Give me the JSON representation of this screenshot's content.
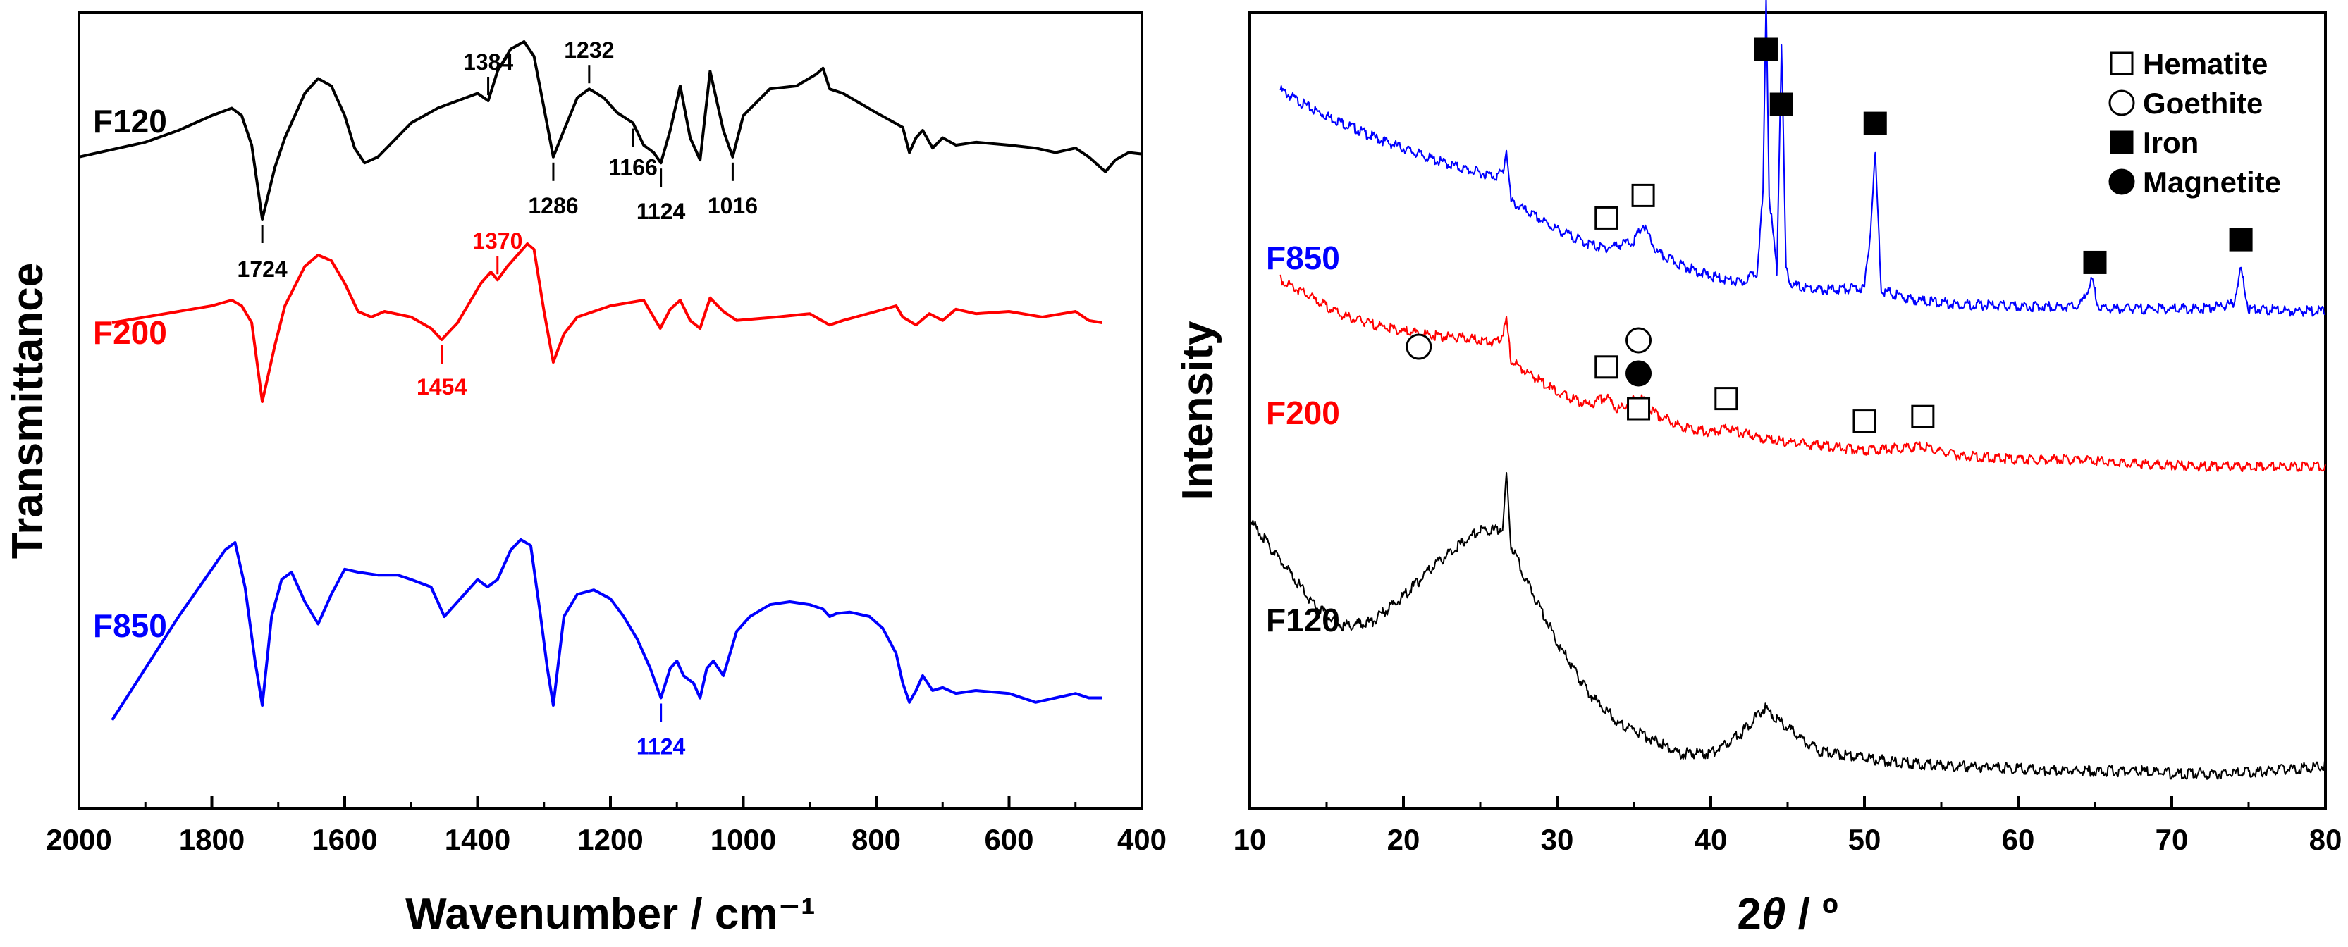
{
  "chart_data": [
    {
      "type": "line",
      "xlabel": "Wavenumber / cm⁻¹",
      "ylabel": "Transmittance",
      "xlim": [
        2000,
        400
      ],
      "x_reversed": true,
      "x_ticks": [
        2000,
        1800,
        1600,
        1400,
        1200,
        1000,
        800,
        600,
        400
      ],
      "y_ticks": false,
      "grid": false,
      "series": [
        {
          "name": "F120",
          "color": "#000000",
          "x": [
            2000,
            1900,
            1850,
            1800,
            1770,
            1755,
            1740,
            1724,
            1705,
            1690,
            1660,
            1640,
            1620,
            1600,
            1585,
            1570,
            1550,
            1500,
            1460,
            1430,
            1400,
            1384,
            1370,
            1350,
            1330,
            1315,
            1300,
            1286,
            1270,
            1250,
            1232,
            1210,
            1190,
            1166,
            1150,
            1135,
            1124,
            1110,
            1095,
            1080,
            1065,
            1050,
            1030,
            1016,
            1000,
            960,
            920,
            890,
            880,
            870,
            850,
            800,
            760,
            750,
            740,
            730,
            715,
            700,
            680,
            650,
            600,
            560,
            530,
            500,
            480,
            455,
            440,
            420,
            400
          ],
          "y": [
            0.12,
            0.22,
            0.3,
            0.4,
            0.45,
            0.4,
            0.2,
            -0.3,
            0.05,
            0.25,
            0.55,
            0.65,
            0.6,
            0.4,
            0.18,
            0.08,
            0.12,
            0.35,
            0.45,
            0.5,
            0.55,
            0.5,
            0.7,
            0.85,
            0.9,
            0.8,
            0.45,
            0.12,
            0.3,
            0.52,
            0.58,
            0.52,
            0.42,
            0.35,
            0.2,
            0.15,
            0.08,
            0.3,
            0.6,
            0.25,
            0.1,
            0.7,
            0.3,
            0.12,
            0.4,
            0.58,
            0.6,
            0.68,
            0.72,
            0.58,
            0.55,
            0.42,
            0.32,
            0.15,
            0.25,
            0.3,
            0.18,
            0.25,
            0.2,
            0.22,
            0.2,
            0.18,
            0.15,
            0.18,
            0.12,
            0.02,
            0.1,
            0.15,
            0.14
          ]
        },
        {
          "name": "F200",
          "color": "#ff0000",
          "x": [
            1950,
            1850,
            1800,
            1770,
            1755,
            1740,
            1724,
            1705,
            1690,
            1660,
            1640,
            1620,
            1600,
            1580,
            1560,
            1540,
            1500,
            1470,
            1454,
            1430,
            1410,
            1395,
            1380,
            1370,
            1355,
            1340,
            1325,
            1315,
            1300,
            1286,
            1270,
            1250,
            1200,
            1150,
            1140,
            1125,
            1110,
            1095,
            1080,
            1065,
            1050,
            1030,
            1010,
            950,
            900,
            870,
            850,
            800,
            770,
            760,
            740,
            720,
            700,
            680,
            650,
            600,
            550,
            500,
            480,
            460
          ],
          "y": [
            0.4,
            0.5,
            0.55,
            0.6,
            0.55,
            0.4,
            -0.3,
            0.2,
            0.55,
            0.9,
            1.0,
            0.95,
            0.75,
            0.5,
            0.45,
            0.5,
            0.45,
            0.35,
            0.25,
            0.4,
            0.6,
            0.75,
            0.85,
            0.78,
            0.9,
            1.0,
            1.1,
            1.05,
            0.5,
            0.05,
            0.3,
            0.45,
            0.55,
            0.6,
            0.5,
            0.35,
            0.52,
            0.6,
            0.42,
            0.35,
            0.62,
            0.5,
            0.42,
            0.45,
            0.48,
            0.38,
            0.42,
            0.5,
            0.55,
            0.45,
            0.38,
            0.48,
            0.42,
            0.52,
            0.48,
            0.5,
            0.45,
            0.5,
            0.42,
            0.4
          ]
        },
        {
          "name": "F850",
          "color": "#0000ff",
          "x": [
            1950,
            1900,
            1850,
            1800,
            1780,
            1765,
            1750,
            1735,
            1724,
            1710,
            1695,
            1680,
            1660,
            1640,
            1620,
            1600,
            1580,
            1550,
            1520,
            1500,
            1470,
            1450,
            1430,
            1410,
            1400,
            1385,
            1370,
            1350,
            1335,
            1320,
            1305,
            1295,
            1286,
            1270,
            1250,
            1225,
            1200,
            1180,
            1160,
            1140,
            1124,
            1110,
            1100,
            1090,
            1075,
            1065,
            1055,
            1045,
            1030,
            1010,
            990,
            960,
            930,
            900,
            880,
            870,
            860,
            840,
            810,
            790,
            770,
            760,
            750,
            740,
            730,
            715,
            700,
            680,
            650,
            600,
            560,
            530,
            500,
            480,
            460
          ],
          "y": [
            -0.4,
            -0.05,
            0.3,
            0.62,
            0.75,
            0.8,
            0.5,
            0.0,
            -0.3,
            0.3,
            0.55,
            0.6,
            0.4,
            0.25,
            0.45,
            0.62,
            0.6,
            0.58,
            0.58,
            0.55,
            0.5,
            0.3,
            0.4,
            0.5,
            0.55,
            0.5,
            0.55,
            0.75,
            0.82,
            0.78,
            0.3,
            -0.05,
            -0.3,
            0.3,
            0.45,
            0.48,
            0.42,
            0.3,
            0.15,
            -0.05,
            -0.25,
            -0.05,
            0.0,
            -0.1,
            -0.15,
            -0.25,
            -0.05,
            0.0,
            -0.1,
            0.2,
            0.3,
            0.38,
            0.4,
            0.38,
            0.35,
            0.3,
            0.32,
            0.33,
            0.3,
            0.22,
            0.05,
            -0.15,
            -0.28,
            -0.2,
            -0.1,
            -0.2,
            -0.18,
            -0.22,
            -0.2,
            -0.22,
            -0.28,
            -0.25,
            -0.22,
            -0.25,
            -0.25
          ]
        }
      ],
      "annotations": [
        {
          "text": "1724",
          "series": "F120",
          "x": 1724
        },
        {
          "text": "1384",
          "series": "F120",
          "x": 1384
        },
        {
          "text": "1232",
          "series": "F120",
          "x": 1232
        },
        {
          "text": "1286",
          "series": "F120",
          "x": 1286
        },
        {
          "text": "1166",
          "series": "F120",
          "x": 1166
        },
        {
          "text": "1124",
          "series": "F120",
          "x": 1124
        },
        {
          "text": "1016",
          "series": "F120",
          "x": 1016
        },
        {
          "text": "1454",
          "series": "F200",
          "x": 1454
        },
        {
          "text": "1370",
          "series": "F200",
          "x": 1370
        },
        {
          "text": "1124",
          "series": "F850",
          "x": 1124
        }
      ]
    },
    {
      "type": "line",
      "xlabel": "2θ / º",
      "xlabel_parts": {
        "pre": "2",
        "theta": "θ",
        "post": " / º"
      },
      "ylabel": "Intensity",
      "xlim": [
        10,
        80
      ],
      "x_ticks": [
        10,
        20,
        30,
        40,
        50,
        60,
        70,
        80
      ],
      "y_ticks": false,
      "grid": false,
      "legend_position": "top-right",
      "legend": [
        {
          "label": "Hematite",
          "marker": "open-square"
        },
        {
          "label": "Goethite",
          "marker": "open-circle"
        },
        {
          "label": "Iron",
          "marker": "filled-square"
        },
        {
          "label": "Magnetite",
          "marker": "filled-circle"
        }
      ],
      "series": [
        {
          "name": "F850",
          "color": "#0000ff",
          "x": [
            12,
            14,
            16,
            18,
            20,
            22,
            24,
            26,
            26.5,
            26.7,
            27,
            28,
            30,
            32,
            33,
            35,
            35.6,
            36.5,
            38,
            40,
            42,
            43,
            43.4,
            43.6,
            43.8,
            44.3,
            44.6,
            44.9,
            45.3,
            47,
            50,
            50.4,
            50.7,
            51.1,
            53,
            56,
            60,
            64,
            64.8,
            65.3,
            68,
            72,
            74,
            74.5,
            75,
            78,
            80
          ],
          "y": [
            100,
            92,
            86,
            80,
            75,
            70,
            66,
            63,
            65,
            75,
            52,
            48,
            40,
            34,
            32,
            35,
            42,
            30,
            25,
            20,
            17,
            22,
            55,
            140,
            55,
            22,
            120,
            22,
            16,
            14,
            15,
            40,
            73,
            14,
            10,
            8,
            7,
            7,
            18,
            6,
            6,
            6,
            8,
            23,
            6,
            5,
            5
          ]
        },
        {
          "name": "F200",
          "color": "#ff0000",
          "x": [
            12,
            14,
            16,
            18,
            20,
            22,
            24,
            26,
            26.5,
            26.7,
            27,
            28,
            30,
            32,
            33.2,
            34,
            35.3,
            36.5,
            38,
            40,
            41,
            43,
            46,
            50,
            53.8,
            56,
            60,
            64,
            68,
            72,
            76,
            80
          ],
          "y": [
            88,
            80,
            72,
            68,
            65,
            63,
            62,
            60,
            64,
            70,
            52,
            47,
            38,
            32,
            36,
            30,
            36,
            28,
            23,
            20,
            22,
            18,
            15,
            12,
            14,
            10,
            8,
            8,
            6,
            5,
            5,
            5
          ]
        },
        {
          "name": "F120",
          "color": "#000000",
          "x": [
            10,
            12,
            14,
            16,
            18,
            20,
            22,
            24,
            25,
            26,
            26.5,
            26.7,
            27,
            28,
            30,
            32,
            34,
            36,
            38,
            40,
            42,
            43.5,
            45,
            47,
            50,
            53,
            56,
            60,
            62,
            65,
            68,
            70,
            72,
            74,
            76,
            78,
            80
          ],
          "y": [
            100,
            84,
            68,
            58,
            60,
            70,
            82,
            92,
            96,
            96,
            98,
            118,
            90,
            76,
            52,
            32,
            20,
            14,
            8,
            8,
            16,
            26,
            18,
            9,
            6,
            4,
            3,
            2,
            1,
            1,
            1,
            0,
            0,
            0,
            1,
            2,
            3
          ]
        }
      ],
      "annotations": [
        {
          "marker": "filled-square",
          "series": "F850",
          "x": 43.6
        },
        {
          "marker": "filled-square",
          "series": "F850",
          "x": 44.6
        },
        {
          "marker": "filled-square",
          "series": "F850",
          "x": 50.7
        },
        {
          "marker": "filled-square",
          "series": "F850",
          "x": 65.0
        },
        {
          "marker": "filled-square",
          "series": "F850",
          "x": 74.5
        },
        {
          "marker": "open-square",
          "series": "F850",
          "x": 33.2
        },
        {
          "marker": "open-square",
          "series": "F850",
          "x": 35.6
        },
        {
          "marker": "open-circle",
          "series": "F200",
          "x": 21.0
        },
        {
          "marker": "open-circle",
          "series": "F200",
          "x": 35.3
        },
        {
          "marker": "filled-circle",
          "series": "F200",
          "x": 35.3
        },
        {
          "marker": "open-square",
          "series": "F200",
          "x": 33.2
        },
        {
          "marker": "open-square",
          "series": "F200",
          "x": 35.3
        },
        {
          "marker": "open-square",
          "series": "F200",
          "x": 41.0
        },
        {
          "marker": "open-square",
          "series": "F200",
          "x": 50.0
        },
        {
          "marker": "open-square",
          "series": "F200",
          "x": 53.8
        }
      ]
    }
  ]
}
